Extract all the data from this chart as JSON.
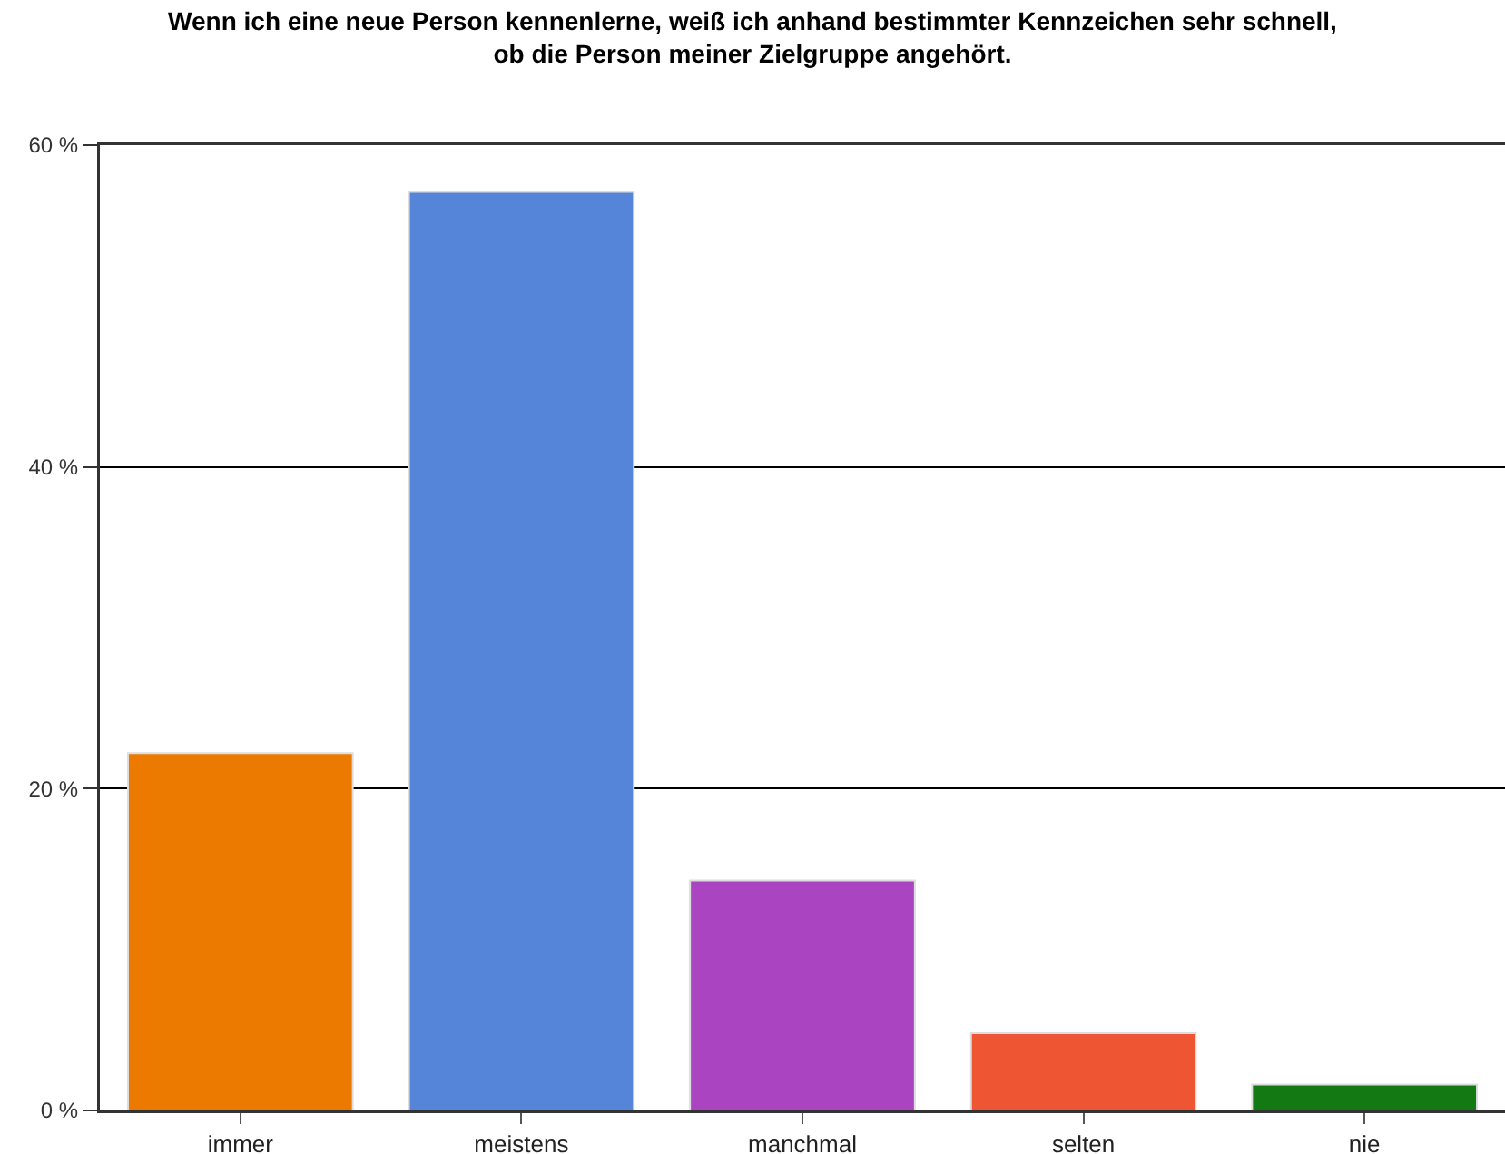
{
  "chart_data": {
    "type": "bar",
    "title": "Wenn ich eine neue Person kennenlerne, weiß ich anhand bestimmter Kennzeichen sehr schnell,\nob die Person meiner Zielgruppe angehört.",
    "categories": [
      "immer",
      "meistens",
      "manchmal",
      "selten",
      "nie"
    ],
    "values": [
      22.2,
      57.1,
      14.3,
      4.8,
      1.6
    ],
    "colors": [
      "#ec7a00",
      "#5585d8",
      "#aa44c0",
      "#ee5533",
      "#137a13"
    ],
    "ylim": [
      0,
      60
    ],
    "yticks": [
      {
        "value": 0,
        "label": "0 %"
      },
      {
        "value": 20,
        "label": "20 %"
      },
      {
        "value": 40,
        "label": "40 %"
      },
      {
        "value": 60,
        "label": "60 %"
      }
    ],
    "grid": "y"
  }
}
